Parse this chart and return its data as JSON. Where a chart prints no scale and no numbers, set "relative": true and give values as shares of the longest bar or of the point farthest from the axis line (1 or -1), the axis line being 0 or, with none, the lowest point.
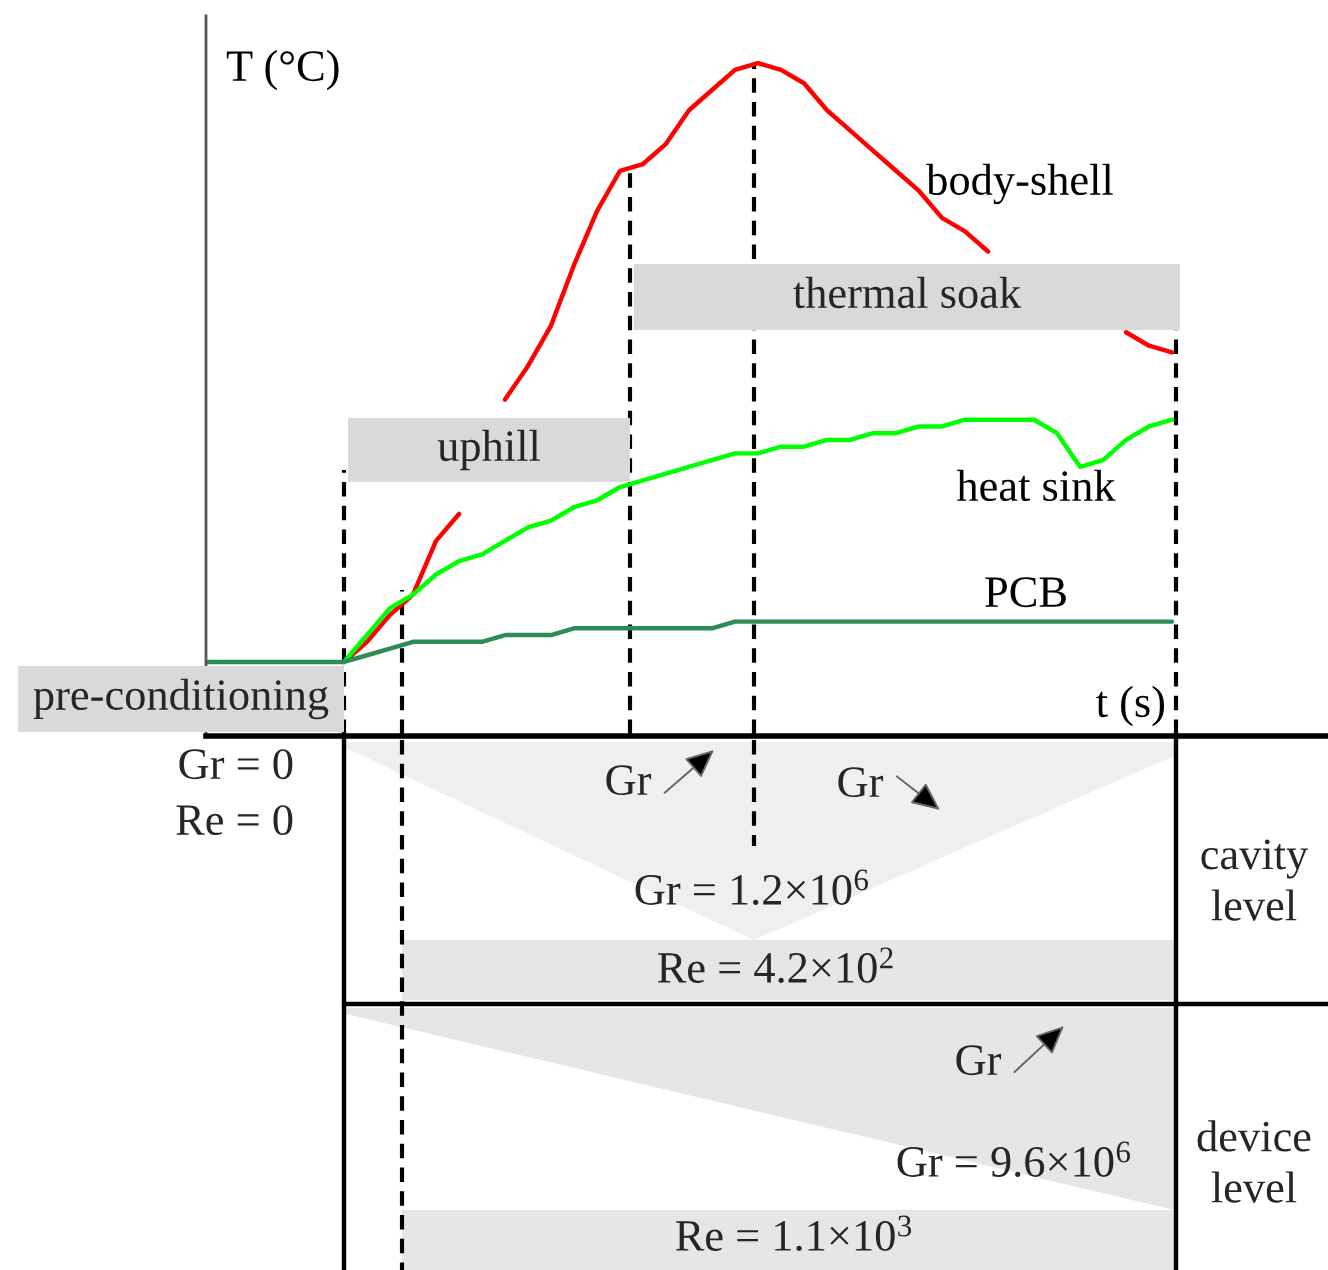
{
  "chart_data": [
    {
      "type": "line",
      "relative": true,
      "xlabel": "t (s)",
      "ylabel": "T (°C)",
      "categories": [
        null,
        null,
        null,
        null,
        null,
        null,
        null,
        null,
        null,
        null,
        null,
        null,
        null,
        null,
        null,
        null,
        null,
        null,
        null,
        null,
        null,
        null,
        null,
        null,
        null,
        null,
        null,
        null,
        null,
        null,
        null,
        null,
        null,
        null,
        null,
        null,
        null,
        null,
        null,
        null,
        null,
        null,
        null
      ],
      "series": [
        {
          "name": "body-shell",
          "color": "#ff0000",
          "values": [
            null,
            null,
            null,
            null,
            null,
            null,
            0.11,
            0.14,
            0.18,
            0.21,
            0.29,
            0.33,
            null,
            0.5,
            0.55,
            0.61,
            0.7,
            0.78,
            0.84,
            0.85,
            0.88,
            0.93,
            0.96,
            0.99,
            1,
            0.99,
            0.97,
            0.93,
            0.9,
            0.87,
            0.84,
            0.81,
            0.77,
            0.75,
            0.72,
            null,
            null,
            null,
            null,
            null,
            0.6,
            0.58,
            0.57
          ]
        },
        {
          "name": "heat sink",
          "color": "#00ff00",
          "values": [
            null,
            null,
            null,
            null,
            null,
            null,
            0.11,
            0.15,
            0.19,
            0.21,
            0.24,
            0.26,
            0.27,
            0.29,
            0.31,
            0.32,
            0.34,
            0.35,
            0.37,
            0.38,
            0.39,
            0.4,
            0.41,
            0.42,
            0.42,
            0.43,
            0.43,
            0.44,
            0.44,
            0.45,
            0.45,
            0.46,
            0.46,
            0.47,
            0.47,
            0.47,
            0.47,
            0.45,
            0.4,
            0.41,
            0.44,
            0.46,
            0.47
          ]
        },
        {
          "name": "PCB",
          "color": "#2e8b57",
          "values": [
            0.11,
            0.11,
            0.11,
            0.11,
            0.11,
            0.11,
            0.11,
            0.12,
            0.13,
            0.14,
            0.14,
            0.14,
            0.14,
            0.15,
            0.15,
            0.15,
            0.16,
            0.16,
            0.16,
            0.16,
            0.16,
            0.16,
            0.16,
            0.17,
            0.17,
            0.17,
            0.17,
            0.17,
            0.17,
            0.17,
            0.17,
            0.17,
            0.17,
            0.17,
            0.17,
            0.17,
            0.17,
            0.17,
            0.17,
            0.17,
            0.17,
            0.17,
            0.17
          ]
        }
      ],
      "annotations": [
        "pre-conditioning",
        "uphill",
        "thermal soak"
      ]
    },
    {
      "type": "other",
      "annotations": [
        "Gr = 0",
        "Re = 0",
        "Gr",
        "Gr",
        "Gr = 1.2×10$^{6}$",
        "Re = 4.2×10$^{2}$",
        "cavity\nlevel",
        "Gr",
        "Gr = 9.6×10$^{6}$",
        "device\nlevel",
        "Re = 1.1×10$^{3}$"
      ]
    }
  ]
}
